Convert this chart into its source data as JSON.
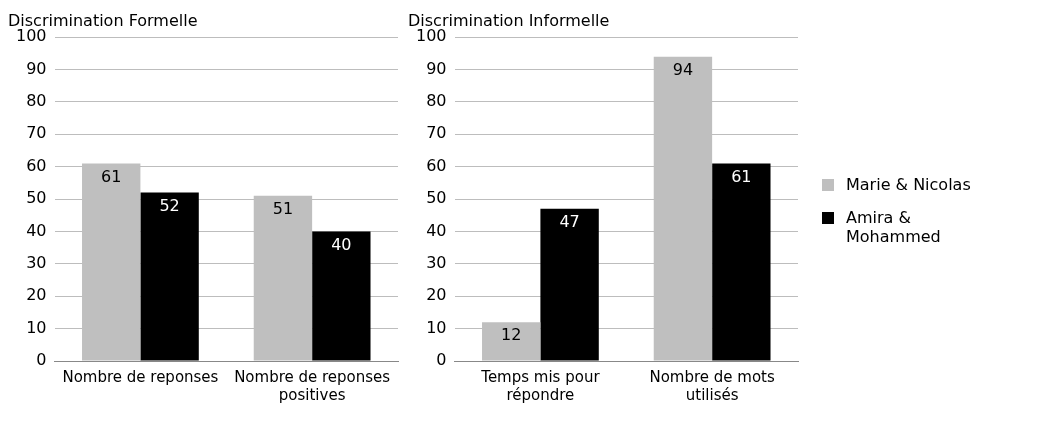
{
  "chart_data": [
    {
      "type": "bar",
      "title": "Discrimination Formelle",
      "categories": [
        "Nombre de reponses",
        "Nombre de reponses positives"
      ],
      "series": [
        {
          "color": "#bfbfbf",
          "values": [
            61,
            51
          ]
        },
        {
          "color": "#000000",
          "values": [
            52,
            40
          ]
        }
      ],
      "ylim": [
        0,
        100
      ],
      "yticks": [
        0,
        10,
        20,
        30,
        40,
        50,
        60,
        70,
        80,
        90,
        100
      ],
      "grid": "y",
      "data_labels": true,
      "legend": false
    },
    {
      "type": "bar",
      "title": "Discrimination Informelle",
      "categories": [
        "Temps mis pour répondre",
        "Nombre de mots utilisés"
      ],
      "series": [
        {
          "name": "Marie & Nicolas",
          "color": "#bfbfbf",
          "values": [
            12,
            94
          ]
        },
        {
          "name": "Amira & Mohammed",
          "color": "#000000",
          "values": [
            47,
            61
          ]
        }
      ],
      "ylim": [
        0,
        100
      ],
      "yticks": [
        0,
        10,
        20,
        30,
        40,
        50,
        60,
        70,
        80,
        90,
        100
      ],
      "grid": "y",
      "data_labels": true,
      "legend": "right"
    }
  ]
}
